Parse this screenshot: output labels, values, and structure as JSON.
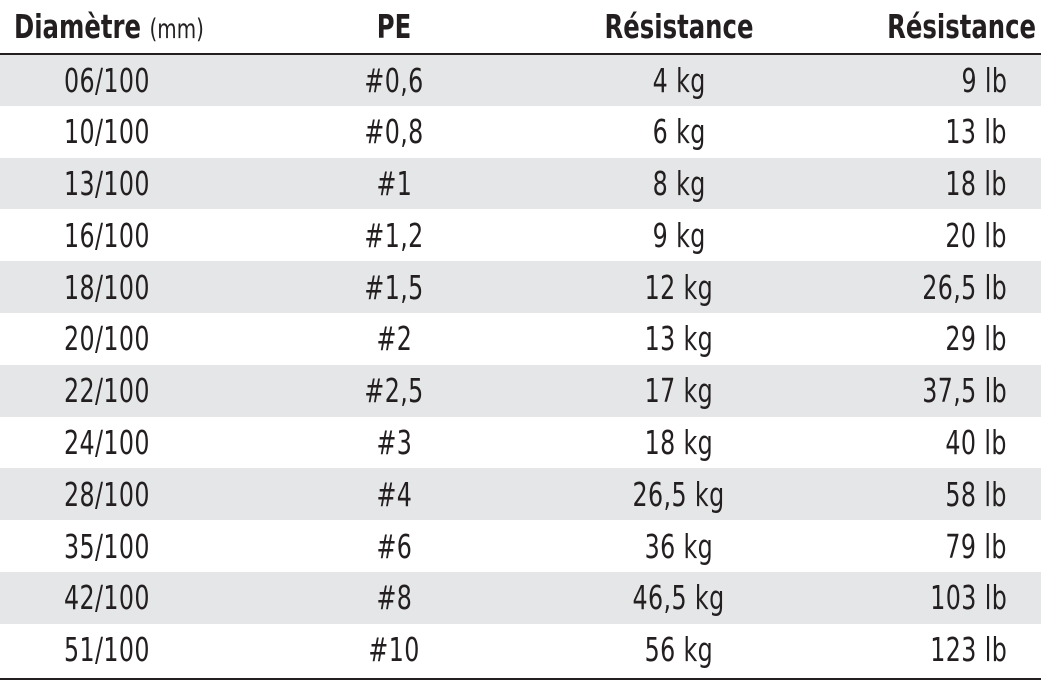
{
  "table": {
    "headers": {
      "diameter": "Diamètre",
      "diameter_unit": "(mm)",
      "pe": "PE",
      "resistance_kg": "Résistance",
      "resistance_lb": "Résistance"
    },
    "rows": [
      {
        "diameter": "06/100",
        "pe": "#0,6",
        "kg": "4 kg",
        "lb": "9 lb"
      },
      {
        "diameter": "10/100",
        "pe": "#0,8",
        "kg": "6 kg",
        "lb": "13 lb"
      },
      {
        "diameter": "13/100",
        "pe": "#1",
        "kg": "8 kg",
        "lb": "18 lb"
      },
      {
        "diameter": "16/100",
        "pe": "#1,2",
        "kg": "9 kg",
        "lb": "20 lb"
      },
      {
        "diameter": "18/100",
        "pe": "#1,5",
        "kg": "12 kg",
        "lb": "26,5 lb"
      },
      {
        "diameter": "20/100",
        "pe": "#2",
        "kg": "13 kg",
        "lb": "29 lb"
      },
      {
        "diameter": "22/100",
        "pe": "#2,5",
        "kg": "17 kg",
        "lb": "37,5 lb"
      },
      {
        "diameter": "24/100",
        "pe": "#3",
        "kg": "18 kg",
        "lb": "40 lb"
      },
      {
        "diameter": "28/100",
        "pe": "#4",
        "kg": "26,5 kg",
        "lb": "58 lb"
      },
      {
        "diameter": "35/100",
        "pe": "#6",
        "kg": "36 kg",
        "lb": "79 lb"
      },
      {
        "diameter": "42/100",
        "pe": "#8",
        "kg": "46,5 kg",
        "lb": "103 lb"
      },
      {
        "diameter": "51/100",
        "pe": "#10",
        "kg": "56 kg",
        "lb": "123 lb"
      }
    ]
  },
  "colors": {
    "text": "#231f20",
    "row_shade": "#e5e6e7",
    "background": "#ffffff"
  }
}
